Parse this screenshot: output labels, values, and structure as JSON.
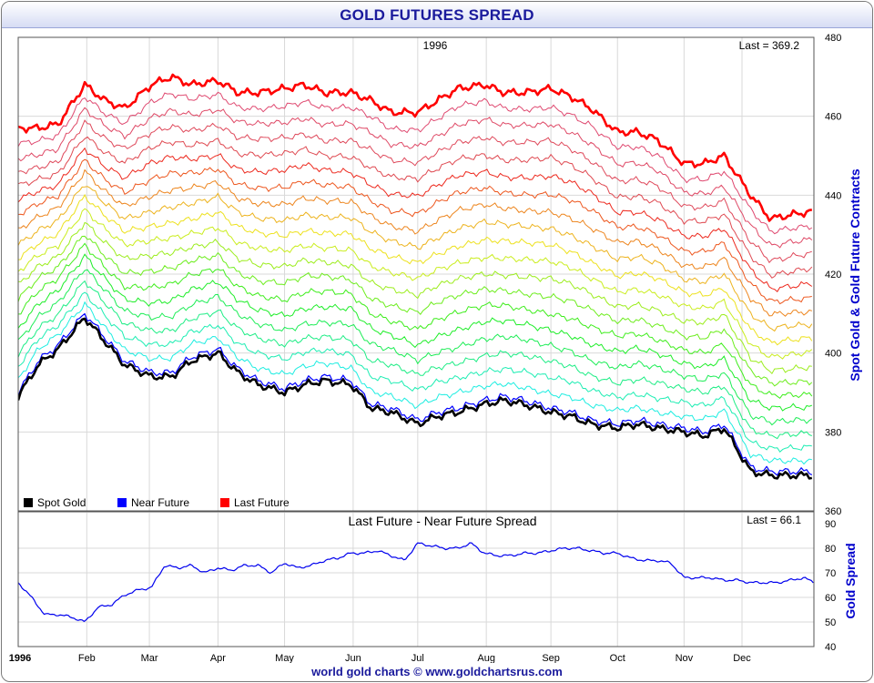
{
  "title": "GOLD FUTURES SPREAD",
  "footer": "world gold charts © www.goldchartsrus.com",
  "colors": {
    "spot": "#000000",
    "near": "#0000ff",
    "last": "#ff0000",
    "spread": "#0000ee",
    "title": "#1a1a9c"
  },
  "chart_data": [
    {
      "type": "line",
      "title": "1996",
      "last_label": "Last = 369.2",
      "ylabel": "Spot Gold & Gold Future Contracts",
      "ylim": [
        360,
        480
      ],
      "yticks": [
        360,
        380,
        400,
        420,
        440,
        460,
        480
      ],
      "xlabels": [
        "1996",
        "Feb",
        "Mar",
        "Apr",
        "May",
        "Jun",
        "Jul",
        "Aug",
        "Sep",
        "Oct",
        "Nov",
        "Dec"
      ],
      "grid": true,
      "legend": "bottom-left",
      "legend_entries": [
        "Spot Gold",
        "Near Future",
        "Last Future"
      ],
      "curve_count": 20,
      "x_months": [
        0,
        0.3,
        0.6,
        1.0,
        1.3,
        1.6,
        2.0,
        2.3,
        2.6,
        3.0,
        3.3,
        3.6,
        4.0,
        4.3,
        4.6,
        5.0,
        5.3,
        5.6,
        6.0,
        6.3,
        6.6,
        7.0,
        7.3,
        7.6,
        8.0,
        8.3,
        8.6,
        9.0,
        9.3,
        9.6,
        10.0,
        10.3,
        10.6,
        11.0,
        11.3,
        11.6,
        11.95
      ],
      "series": [
        {
          "name": "Spot Gold",
          "values": [
            389,
            397,
            401,
            409,
            403,
            397,
            394,
            394,
            398,
            400,
            395,
            392,
            390,
            392,
            393,
            392,
            386,
            385,
            382,
            384,
            385,
            387,
            388,
            387,
            385,
            384,
            382,
            381,
            382,
            381,
            380,
            379,
            381,
            370,
            369,
            369,
            369
          ]
        },
        {
          "name": "Near Future",
          "values": [
            390,
            398,
            402,
            410,
            404,
            398,
            395,
            395,
            399,
            401,
            396,
            393,
            391,
            393,
            394,
            393,
            387,
            386,
            383,
            385,
            386,
            388,
            389,
            388,
            386,
            385,
            383,
            382,
            383,
            382,
            381,
            380,
            382,
            371,
            370,
            370,
            370
          ]
        },
        {
          "name": "Last Future",
          "values": [
            457,
            457,
            458,
            468,
            464,
            462,
            468,
            470,
            468,
            469,
            466,
            466,
            467,
            468,
            466,
            466,
            464,
            461,
            461,
            464,
            467,
            468,
            466,
            466,
            467,
            465,
            462,
            456,
            456,
            454,
            448,
            448,
            450,
            440,
            434,
            435,
            436
          ]
        }
      ]
    },
    {
      "type": "line",
      "title": "Last Future - Near Future Spread",
      "last_label": "Last = 66.1",
      "ylabel": "Gold Spread",
      "ylim": [
        40,
        90
      ],
      "yticks": [
        40,
        50,
        60,
        70,
        80,
        90
      ],
      "grid": true,
      "series": [
        {
          "name": "Spread",
          "x": [
            0,
            0.2,
            0.4,
            0.6,
            0.8,
            1.0,
            1.2,
            1.4,
            1.6,
            1.8,
            2.0,
            2.2,
            2.4,
            2.6,
            2.8,
            3.0,
            3.2,
            3.4,
            3.6,
            3.8,
            4.0,
            4.2,
            4.4,
            4.6,
            4.8,
            5.0,
            5.2,
            5.4,
            5.6,
            5.8,
            6.0,
            6.2,
            6.4,
            6.6,
            6.8,
            7.0,
            7.2,
            7.4,
            7.6,
            7.8,
            8.0,
            8.2,
            8.4,
            8.6,
            8.8,
            9.0,
            9.2,
            9.4,
            9.6,
            9.8,
            10.0,
            10.2,
            10.4,
            10.6,
            10.8,
            11.0,
            11.2,
            11.4,
            11.6,
            11.8,
            11.95
          ],
          "values": [
            66,
            60,
            53,
            53,
            52,
            50,
            56,
            57,
            61,
            63,
            64,
            73,
            72,
            73,
            70,
            72,
            71,
            73,
            73,
            70,
            74,
            72,
            73,
            75,
            76,
            78,
            78,
            79,
            77,
            75,
            82,
            81,
            80,
            80,
            82,
            78,
            77,
            77,
            78,
            78,
            79,
            80,
            80,
            79,
            78,
            78,
            76,
            75,
            75,
            74,
            68,
            68,
            68,
            67,
            67,
            66,
            66,
            66,
            67,
            68,
            66
          ]
        }
      ]
    }
  ]
}
